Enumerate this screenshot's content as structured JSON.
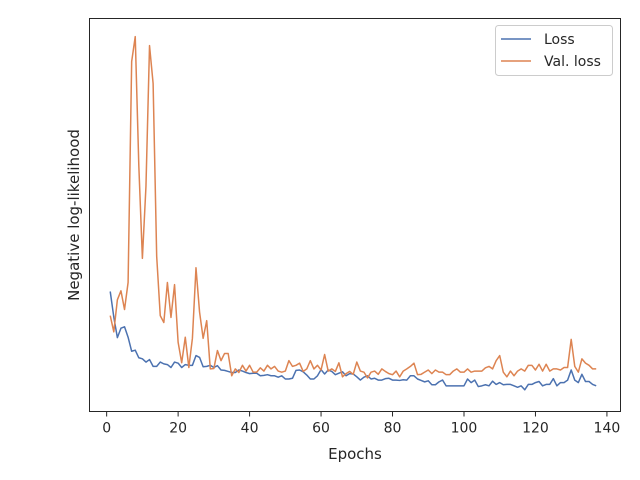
{
  "chart_data": {
    "type": "line",
    "title": "",
    "xlabel": "Epochs",
    "ylabel": "Negative log-likelihood",
    "xlim": [
      -4.8,
      143.8
    ],
    "ylim": [
      0,
      1
    ],
    "x_ticks": [
      0,
      20,
      40,
      60,
      80,
      100,
      120,
      140
    ],
    "y_ticks_shown": false,
    "grid": false,
    "legend_position": "top-right",
    "series": [
      {
        "name": "Loss",
        "color": "#4c72b0",
        "x": [
          1,
          2,
          3,
          4,
          5,
          6,
          7,
          8,
          9,
          10,
          11,
          12,
          13,
          14,
          15,
          16,
          17,
          18,
          19,
          20,
          21,
          22,
          23,
          24,
          25,
          26,
          27,
          28,
          29,
          30,
          31,
          32,
          33,
          34,
          35,
          36,
          37,
          38,
          39,
          40,
          41,
          42,
          43,
          44,
          45,
          46,
          47,
          48,
          49,
          50,
          51,
          52,
          53,
          54,
          55,
          56,
          57,
          58,
          59,
          60,
          61,
          62,
          63,
          64,
          65,
          66,
          67,
          68,
          69,
          70,
          71,
          72,
          73,
          74,
          75,
          76,
          77,
          78,
          79,
          80,
          81,
          82,
          83,
          84,
          85,
          86,
          87,
          88,
          89,
          90,
          91,
          92,
          93,
          94,
          95,
          96,
          97,
          98,
          99,
          100,
          101,
          102,
          103,
          104,
          105,
          106,
          107,
          108,
          109,
          110,
          111,
          112,
          113,
          114,
          115,
          116,
          117,
          118,
          119,
          120,
          121,
          122,
          123,
          124,
          125,
          126,
          127,
          128,
          129,
          130,
          131,
          132,
          133,
          134,
          135,
          136,
          137
        ],
        "y": [
          0.293,
          0.222,
          0.165,
          0.191,
          0.195,
          0.166,
          0.127,
          0.13,
          0.109,
          0.106,
          0.097,
          0.104,
          0.085,
          0.085,
          0.097,
          0.092,
          0.09,
          0.082,
          0.097,
          0.094,
          0.082,
          0.09,
          0.088,
          0.088,
          0.115,
          0.11,
          0.084,
          0.085,
          0.088,
          0.082,
          0.087,
          0.075,
          0.074,
          0.071,
          0.068,
          0.068,
          0.075,
          0.072,
          0.068,
          0.065,
          0.066,
          0.066,
          0.059,
          0.06,
          0.062,
          0.059,
          0.059,
          0.055,
          0.059,
          0.05,
          0.05,
          0.052,
          0.074,
          0.075,
          0.07,
          0.061,
          0.05,
          0.05,
          0.059,
          0.076,
          0.064,
          0.075,
          0.071,
          0.062,
          0.066,
          0.07,
          0.059,
          0.065,
          0.064,
          0.056,
          0.047,
          0.055,
          0.059,
          0.05,
          0.052,
          0.047,
          0.047,
          0.051,
          0.052,
          0.047,
          0.047,
          0.046,
          0.048,
          0.047,
          0.059,
          0.059,
          0.05,
          0.046,
          0.042,
          0.045,
          0.034,
          0.034,
          0.042,
          0.047,
          0.031,
          0.031,
          0.031,
          0.031,
          0.031,
          0.031,
          0.05,
          0.04,
          0.047,
          0.029,
          0.031,
          0.034,
          0.031,
          0.044,
          0.035,
          0.04,
          0.034,
          0.035,
          0.035,
          0.031,
          0.027,
          0.031,
          0.02,
          0.035,
          0.035,
          0.04,
          0.043,
          0.031,
          0.035,
          0.035,
          0.051,
          0.031,
          0.04,
          0.04,
          0.047,
          0.075,
          0.047,
          0.04,
          0.063,
          0.043,
          0.043,
          0.035,
          0.031
        ]
      },
      {
        "name": "Val. loss",
        "color": "#dd8452",
        "x": [
          1,
          2,
          3,
          4,
          5,
          6,
          7,
          8,
          9,
          10,
          11,
          12,
          13,
          14,
          15,
          16,
          17,
          18,
          19,
          20,
          21,
          22,
          23,
          24,
          25,
          26,
          27,
          28,
          29,
          30,
          31,
          32,
          33,
          34,
          35,
          36,
          37,
          38,
          39,
          40,
          41,
          42,
          43,
          44,
          45,
          46,
          47,
          48,
          49,
          50,
          51,
          52,
          53,
          54,
          55,
          56,
          57,
          58,
          59,
          60,
          61,
          62,
          63,
          64,
          65,
          66,
          67,
          68,
          69,
          70,
          71,
          72,
          73,
          74,
          75,
          76,
          77,
          78,
          79,
          80,
          81,
          82,
          83,
          84,
          85,
          86,
          87,
          88,
          89,
          90,
          91,
          92,
          93,
          94,
          95,
          96,
          97,
          98,
          99,
          100,
          101,
          102,
          103,
          104,
          105,
          106,
          107,
          108,
          109,
          110,
          111,
          112,
          113,
          114,
          115,
          116,
          117,
          118,
          119,
          120,
          121,
          122,
          123,
          124,
          125,
          126,
          127,
          128,
          129,
          130,
          131,
          132,
          133,
          134,
          135,
          136,
          137
        ],
        "y": [
          0.226,
          0.181,
          0.27,
          0.295,
          0.243,
          0.318,
          0.932,
          1.001,
          0.643,
          0.385,
          0.585,
          0.976,
          0.871,
          0.391,
          0.226,
          0.207,
          0.318,
          0.221,
          0.312,
          0.152,
          0.095,
          0.166,
          0.082,
          0.163,
          0.359,
          0.236,
          0.163,
          0.212,
          0.078,
          0.079,
          0.129,
          0.101,
          0.121,
          0.121,
          0.059,
          0.078,
          0.068,
          0.088,
          0.072,
          0.088,
          0.069,
          0.069,
          0.081,
          0.072,
          0.088,
          0.078,
          0.085,
          0.072,
          0.069,
          0.072,
          0.101,
          0.085,
          0.088,
          0.094,
          0.071,
          0.078,
          0.101,
          0.078,
          0.088,
          0.075,
          0.118,
          0.072,
          0.078,
          0.071,
          0.095,
          0.056,
          0.065,
          0.071,
          0.063,
          0.097,
          0.072,
          0.069,
          0.053,
          0.069,
          0.072,
          0.063,
          0.078,
          0.071,
          0.065,
          0.062,
          0.072,
          0.056,
          0.072,
          0.078,
          0.085,
          0.094,
          0.062,
          0.063,
          0.069,
          0.075,
          0.065,
          0.075,
          0.069,
          0.069,
          0.062,
          0.062,
          0.072,
          0.078,
          0.069,
          0.069,
          0.078,
          0.069,
          0.072,
          0.072,
          0.072,
          0.081,
          0.085,
          0.078,
          0.101,
          0.115,
          0.069,
          0.056,
          0.072,
          0.059,
          0.072,
          0.078,
          0.072,
          0.088,
          0.088,
          0.075,
          0.091,
          0.072,
          0.091,
          0.072,
          0.078,
          0.078,
          0.075,
          0.082,
          0.082,
          0.16,
          0.085,
          0.069,
          0.106,
          0.094,
          0.088,
          0.078,
          0.078
        ]
      }
    ]
  }
}
